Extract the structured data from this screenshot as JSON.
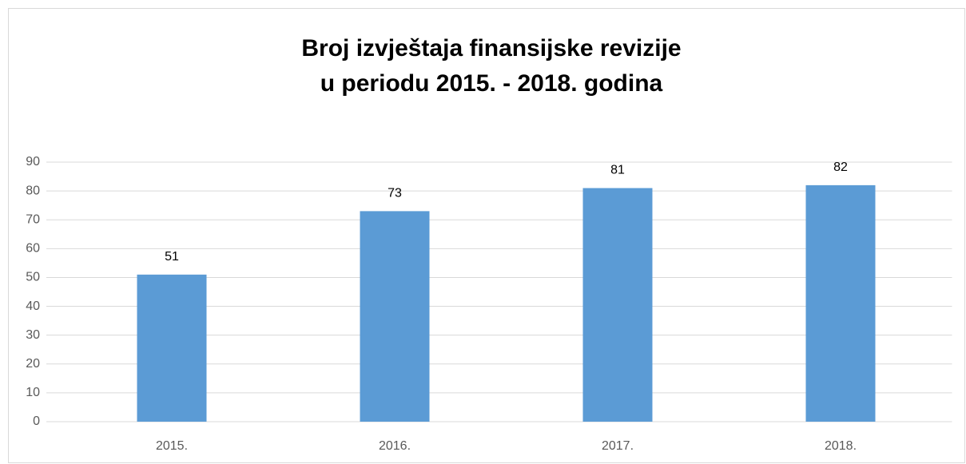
{
  "chart_data": {
    "type": "bar",
    "title": [
      "Broj izvještaja finansijske revizije",
      "u periodu 2015. - 2018. godina"
    ],
    "categories": [
      "2015.",
      "2016.",
      "2017.",
      "2018."
    ],
    "values": [
      51,
      73,
      81,
      82
    ],
    "color": "#5b9bd5",
    "ylim": [
      0,
      90
    ],
    "yticks": [
      0,
      10,
      20,
      30,
      40,
      50,
      60,
      70,
      80,
      90
    ],
    "grid": true,
    "data_labels": true
  }
}
